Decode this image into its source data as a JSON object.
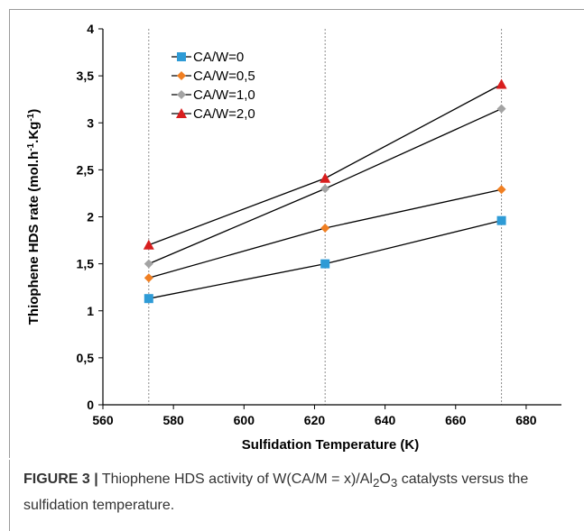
{
  "chart_data": {
    "type": "line",
    "x": [
      573,
      623,
      673
    ],
    "series": [
      {
        "name": "CA/W=0",
        "values": [
          1.13,
          1.5,
          1.96
        ],
        "color": "#2e9bd6",
        "marker": "square"
      },
      {
        "name": "CA/W=0,5",
        "values": [
          1.35,
          1.88,
          2.29
        ],
        "color": "#f07f22",
        "marker": "diamond"
      },
      {
        "name": "CA/W=1,0",
        "values": [
          1.5,
          2.3,
          3.15
        ],
        "color": "#a3a3a3",
        "marker": "diamond"
      },
      {
        "name": "CA/W=2,0",
        "values": [
          1.7,
          2.41,
          3.41
        ],
        "color": "#d81e1e",
        "marker": "triangle"
      }
    ],
    "xlabel": "Sulfidation Temperature (K)",
    "ylabel_parts": [
      "Thiophene HDS rate (mol.h",
      "-1",
      ".Kg",
      "-1",
      ")"
    ],
    "xlim": [
      560,
      690
    ],
    "ylim": [
      0,
      4
    ],
    "xticks": [
      560,
      580,
      600,
      620,
      640,
      660,
      680
    ],
    "xtick_labels": [
      "560",
      "580",
      "600",
      "620",
      "640",
      "660",
      "680"
    ],
    "yticks": [
      0,
      0.5,
      1,
      1.5,
      2,
      2.5,
      3,
      3.5,
      4
    ],
    "ytick_labels": [
      "0",
      "0,5",
      "1",
      "1,5",
      "2",
      "2,5",
      "3",
      "3,5",
      "4"
    ],
    "vertical_reference_lines": [
      573,
      623,
      673
    ],
    "legend_position": "top-left",
    "line_color": "#000000"
  },
  "caption": {
    "label": "FIGURE 3 |",
    "text_before_sub1": " Thiophene HDS activity of W(CA/M = x)/Al",
    "sub1": "2",
    "middle": "O",
    "sub2": "3",
    "text_after": " catalysts versus the sulfidation temperature."
  }
}
